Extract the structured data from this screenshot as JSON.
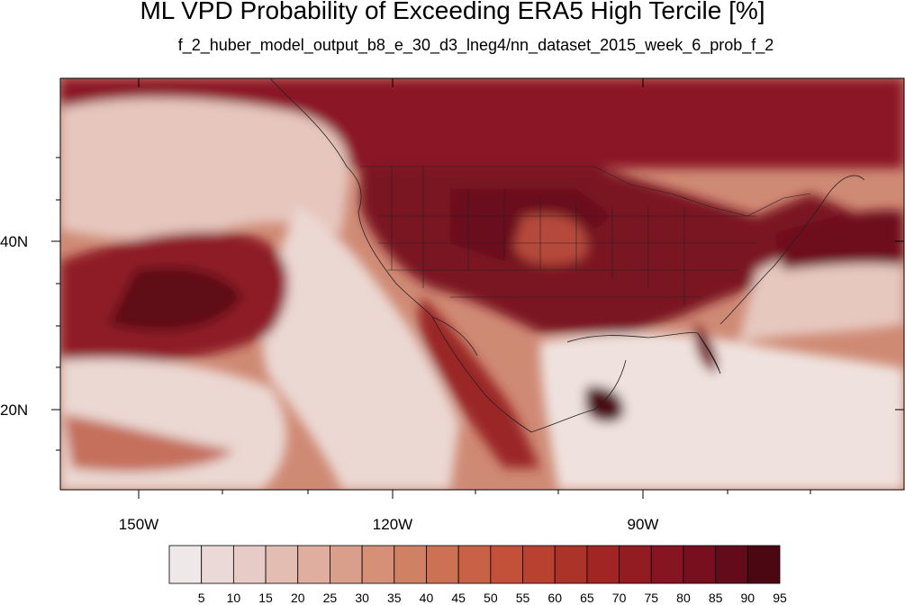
{
  "title": "ML VPD Probability of Exceeding ERA5 High Tercile [%]",
  "subtitle": "f_2_huber_model_output_b8_e_30_d3_lneg4/nn_dataset_2015_week_6_prob_f_2",
  "map": {
    "lon_range": [
      -160,
      -62
    ],
    "lat_range": [
      10,
      59
    ],
    "lon_ticks": [
      {
        "value": -150,
        "label": "150W"
      },
      {
        "value": -120,
        "label": "120W"
      },
      {
        "value": -90,
        "label": "90W"
      }
    ],
    "lat_ticks": [
      {
        "value": 40,
        "label": "40N"
      },
      {
        "value": 20,
        "label": "20N"
      }
    ]
  },
  "colorbar": {
    "labels": [
      "5",
      "10",
      "15",
      "20",
      "25",
      "30",
      "35",
      "40",
      "45",
      "50",
      "55",
      "60",
      "65",
      "70",
      "75",
      "80",
      "85",
      "90",
      "95"
    ],
    "colors": [
      "#efe8e8",
      "#ead9d7",
      "#e6cbc6",
      "#e3bcb2",
      "#dfae9f",
      "#da9f8a",
      "#d59077",
      "#d08063",
      "#cc7153",
      "#c96146",
      "#c3513a",
      "#b8412f",
      "#ac3327",
      "#a12522",
      "#931b22",
      "#861421",
      "#770f1f",
      "#630b1b",
      "#4b0813"
    ]
  }
}
